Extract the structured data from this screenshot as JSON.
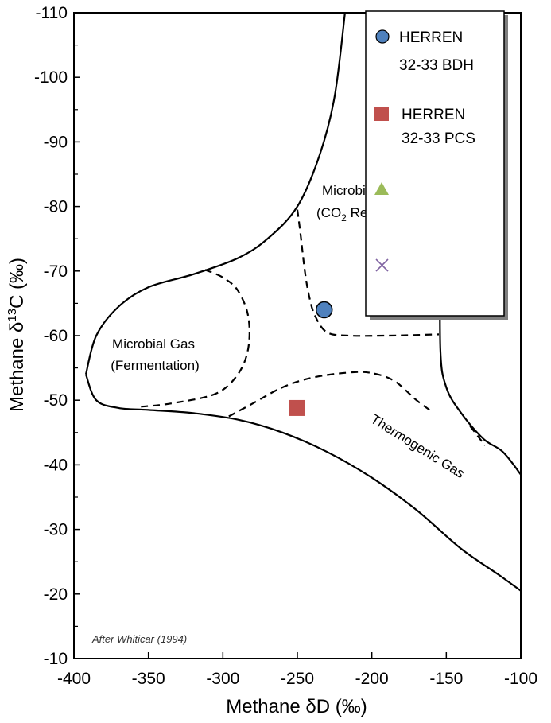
{
  "chart_data": {
    "type": "scatter",
    "xlabel": "Methane δD (‰)",
    "ylabel_parts": {
      "prefix": "Methane δ",
      "sup": "13",
      "suffix": "C (‰)"
    },
    "xlim": [
      -400,
      -100
    ],
    "ylim": [
      -10,
      -110
    ],
    "x_ticks": [
      -400,
      -350,
      -300,
      -250,
      -200,
      -150,
      -100
    ],
    "x_tick_labels": [
      "-400",
      "-350",
      "-300",
      "-250",
      "-200",
      "-150",
      "-100"
    ],
    "y_ticks": [
      -10,
      -20,
      -30,
      -40,
      -50,
      -60,
      -70,
      -80,
      -90,
      -100,
      -110
    ],
    "y_tick_labels": [
      "-10",
      "-20",
      "-30",
      "-40",
      "-50",
      "-60",
      "-70",
      "-80",
      "-90",
      "-100",
      "-110"
    ],
    "grid": false,
    "legend_position": "top-right",
    "series": [
      {
        "name": "HERREN 32-33 BDH",
        "legend_lines": [
          "HERREN",
          "32-33 BDH"
        ],
        "marker": "circle",
        "color": "#4f81bd",
        "points": [
          {
            "x": -232,
            "y": -64
          }
        ]
      },
      {
        "name": "HERREN 32-33 PCS",
        "legend_lines": [
          "HERREN",
          "32-33 PCS"
        ],
        "marker": "square",
        "color": "#c0504d",
        "points": [
          {
            "x": -250,
            "y": -48.8
          }
        ]
      },
      {
        "name": "",
        "legend_lines": [],
        "marker": "triangle",
        "color": "#9bbb59",
        "points": []
      },
      {
        "name": "",
        "legend_lines": [],
        "marker": "x",
        "color": "#8064a2",
        "points": []
      }
    ],
    "region_labels": {
      "co2": {
        "line1": "Microbial Gas",
        "line2_prefix": "(CO",
        "line2_sub": "2",
        "line2_suffix": " Reduction)"
      },
      "fermentation": {
        "line1": "Microbial Gas",
        "line2": "(Fermentation)"
      },
      "thermogenic": {
        "text": "Thermogenic Gas"
      }
    },
    "source_note": "After Whiticar (1994)",
    "boundaries": {
      "solid_top": [
        [
          -392,
          -54
        ],
        [
          -385,
          -60
        ],
        [
          -370,
          -64.5
        ],
        [
          -350,
          -67.5
        ],
        [
          -320,
          -69.5
        ],
        [
          -290,
          -72
        ],
        [
          -270,
          -75
        ],
        [
          -250,
          -80
        ],
        [
          -235,
          -88
        ],
        [
          -225,
          -97
        ],
        [
          -218,
          -110
        ]
      ],
      "solid_bottom": [
        [
          -392,
          -54
        ],
        [
          -385,
          -50
        ],
        [
          -370,
          -48.8
        ],
        [
          -350,
          -48.5
        ],
        [
          -320,
          -48
        ],
        [
          -290,
          -47
        ],
        [
          -260,
          -45
        ],
        [
          -230,
          -42
        ],
        [
          -200,
          -38
        ],
        [
          -170,
          -33
        ],
        [
          -140,
          -27
        ],
        [
          -115,
          -23
        ],
        [
          -100,
          -20.5
        ]
      ],
      "solid_right": [
        [
          -154,
          -76
        ],
        [
          -154,
          -58
        ],
        [
          -150,
          -52
        ],
        [
          -140,
          -48
        ],
        [
          -125,
          -44
        ],
        [
          -112,
          -42
        ],
        [
          -100,
          -38.5
        ]
      ],
      "dashed_fermentation": [
        [
          -312,
          -70.2
        ],
        [
          -300,
          -69
        ],
        [
          -290,
          -67
        ],
        [
          -283,
          -63
        ],
        [
          -283,
          -58
        ],
        [
          -290,
          -54
        ],
        [
          -305,
          -51
        ],
        [
          -335,
          -49.5
        ],
        [
          -355,
          -49
        ]
      ],
      "dashed_co2": [
        [
          -250,
          -79.5
        ],
        [
          -248,
          -76
        ],
        [
          -245,
          -70
        ],
        [
          -242,
          -66
        ],
        [
          -238,
          -63
        ],
        [
          -230,
          -60.5
        ],
        [
          -215,
          -60
        ],
        [
          -190,
          -60
        ],
        [
          -170,
          -60.1
        ],
        [
          -155,
          -60.2
        ]
      ],
      "dashed_thermogenic": [
        [
          -296,
          -47.5
        ],
        [
          -280,
          -49.5
        ],
        [
          -260,
          -52
        ],
        [
          -240,
          -53.5
        ],
        [
          -215,
          -54.3
        ],
        [
          -200,
          -54.2
        ],
        [
          -185,
          -53
        ],
        [
          -170,
          -50
        ],
        [
          -160,
          -48.3
        ]
      ],
      "dashed_thermogenic_right": [
        [
          -134,
          -46
        ],
        [
          -128,
          -44.2
        ],
        [
          -124,
          -43
        ]
      ]
    }
  }
}
